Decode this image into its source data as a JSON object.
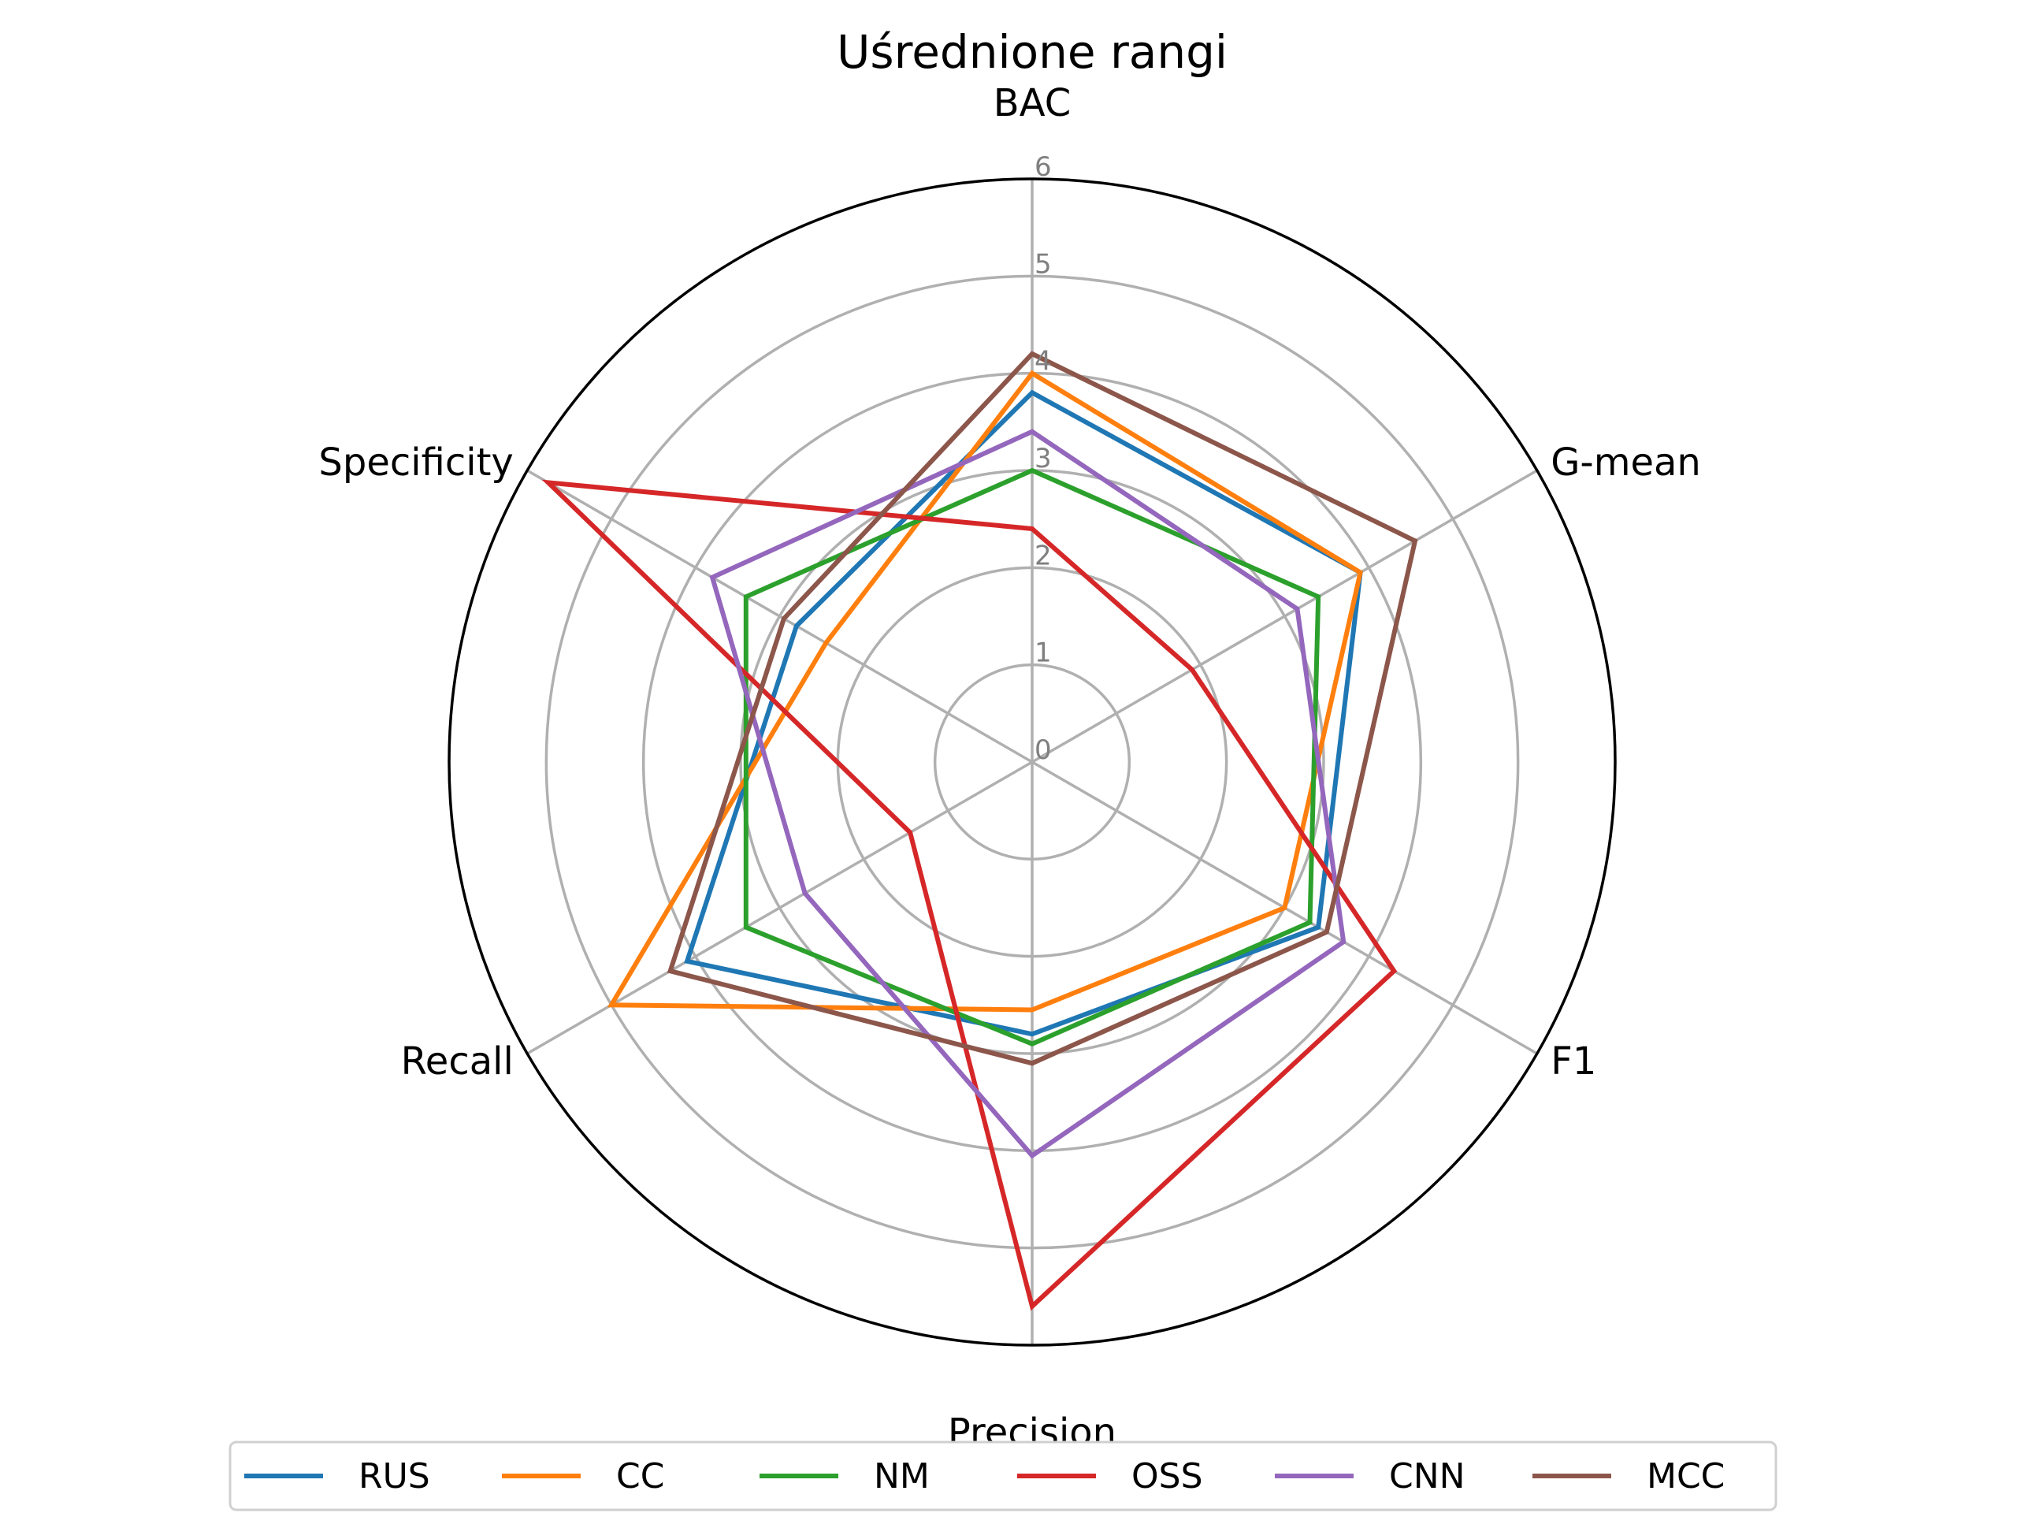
{
  "chart_data": {
    "type": "radar",
    "title": "Uśrednione rangi",
    "axes": [
      "BAC",
      "G-mean",
      "F1",
      "Precision",
      "Recall",
      "Specificity"
    ],
    "rlim": [
      0,
      6
    ],
    "rticks": [
      "0",
      "1",
      "2",
      "3",
      "4",
      "5",
      "6"
    ],
    "grid": true,
    "legend_position": "bottom",
    "series": [
      {
        "name": "RUS",
        "color": "#1f77b4",
        "values": [
          3.8,
          3.9,
          3.4,
          2.8,
          4.1,
          2.8
        ]
      },
      {
        "name": "CC",
        "color": "#ff7f0e",
        "values": [
          4.0,
          3.9,
          3.0,
          2.55,
          5.0,
          2.45
        ]
      },
      {
        "name": "NM",
        "color": "#2ca02c",
        "values": [
          3.0,
          3.4,
          3.3,
          2.9,
          3.4,
          3.4
        ]
      },
      {
        "name": "OSS",
        "color": "#d62728",
        "values": [
          2.4,
          1.9,
          4.3,
          5.6,
          1.45,
          5.75
        ]
      },
      {
        "name": "CNN",
        "color": "#9467bd",
        "values": [
          3.4,
          3.15,
          3.7,
          4.05,
          2.7,
          3.8
        ]
      },
      {
        "name": "MCC",
        "color": "#8c564b",
        "values": [
          4.2,
          4.55,
          3.5,
          3.1,
          4.3,
          2.95
        ]
      }
    ]
  }
}
